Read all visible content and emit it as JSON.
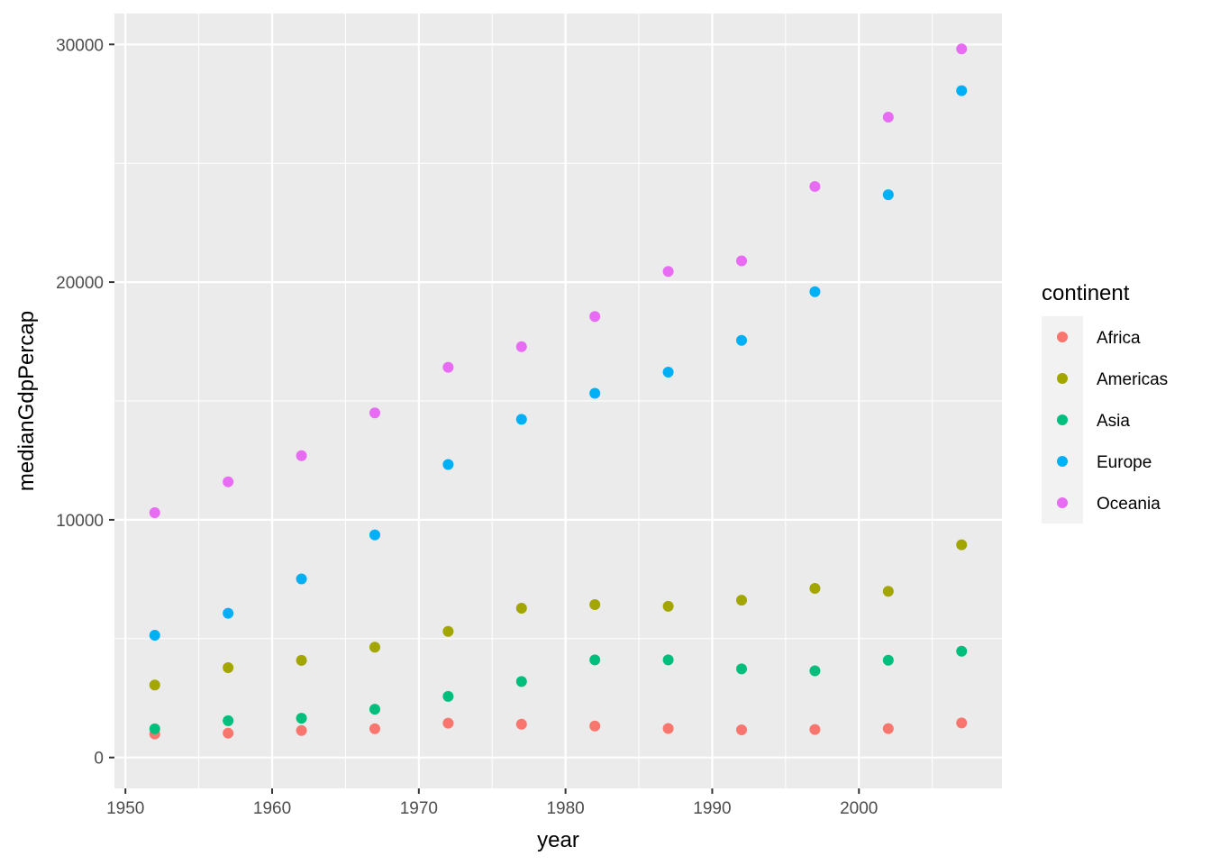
{
  "chart_data": {
    "type": "scatter",
    "xlabel": "year",
    "ylabel": "medianGdpPercap",
    "xlim": [
      1949.25,
      2009.75
    ],
    "ylim": [
      -1300,
      31300
    ],
    "x_ticks": [
      1950,
      1960,
      1970,
      1980,
      1990,
      2000
    ],
    "x_tick_labels": [
      "1950",
      "1960",
      "1970",
      "1980",
      "1990",
      "2000"
    ],
    "y_ticks": [
      0,
      10000,
      20000,
      30000
    ],
    "y_tick_labels": [
      "0",
      "10000",
      "20000",
      "30000"
    ],
    "grid": true,
    "legend": {
      "title": "continent",
      "position": "right"
    },
    "x": [
      1952,
      1957,
      1962,
      1967,
      1972,
      1977,
      1982,
      1987,
      1992,
      1997,
      2002,
      2007
    ],
    "series": [
      {
        "name": "Africa",
        "color": "#F8766D",
        "values": [
          987,
          1024,
          1134,
          1210,
          1443,
          1400,
          1324,
          1220,
          1162,
          1179,
          1215,
          1452
        ]
      },
      {
        "name": "Americas",
        "color": "#A3A500",
        "values": [
          3048,
          3781,
          4086,
          4643,
          5306,
          6281,
          6434,
          6360,
          6618,
          7114,
          6994,
          8948
        ]
      },
      {
        "name": "Asia",
        "color": "#00BF7D",
        "values": [
          1207,
          1548,
          1650,
          2029,
          2571,
          3195,
          4107,
          4106,
          3726,
          3645,
          4091,
          4471
        ]
      },
      {
        "name": "Europe",
        "color": "#00B0F6",
        "values": [
          5142,
          6067,
          7515,
          9366,
          12326,
          14226,
          15323,
          16215,
          17550,
          19596,
          23674,
          28054
        ]
      },
      {
        "name": "Oceania",
        "color": "#E76BF3",
        "values": [
          10298,
          11599,
          12696,
          14496,
          16417,
          17284,
          18555,
          20449,
          20894,
          24024,
          26939,
          29810
        ]
      }
    ]
  }
}
